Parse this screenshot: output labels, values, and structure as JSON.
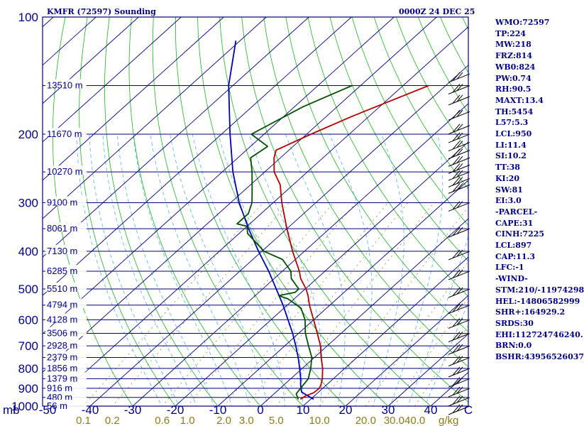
{
  "header": {
    "station": "KMFR (72597) Sounding",
    "time": "0000Z 24 DEC 25"
  },
  "indices": [
    "WMO:72597",
    "TP:224",
    "MW:218",
    "FRZ:814",
    "WB0:824",
    "PW:0.74",
    "RH:90.5",
    "MAXT:13.4",
    "TH:5454",
    "L57:5.3",
    "LCL:950",
    "LI:11.4",
    "SI:10.2",
    "TT:38",
    "KI:20",
    "SW:81",
    "EI:3.0",
    "-PARCEL-",
    "CAPE:31",
    "CINH:7225",
    "LCL:897",
    "CAP:11.3",
    "LFC:-1",
    "-WIND-",
    "STM:210/-11974298",
    "HEL:-14806582999",
    "SHR+:164929.2",
    "SRDS:30",
    "EHI:112724746240.",
    "BRN:0.0",
    "BSHR:43956526037"
  ],
  "colors": {
    "frame": "#000080",
    "temperature": "#b00000",
    "dewpoint": "#005000",
    "parcel": "#0000b0",
    "dry_adiabat": "#20b020",
    "moist_adiabat": "#5aaef0",
    "mixing_ratio": "#8a7a1a",
    "isotherm": "#000080",
    "background": "#ffffff"
  },
  "chart_data": {
    "type": "skew-t",
    "title": "KMFR (72597) Sounding",
    "valid_time": "0000Z 24 DEC 25",
    "pressure_axis_label": "mb",
    "pressure_ticks": [
      100,
      200,
      300,
      400,
      500,
      600,
      700,
      800,
      900,
      1000
    ],
    "pressure_range": [
      1000,
      100
    ],
    "temperature_axis_unit": "C",
    "temperature_ticks": [
      -50,
      -40,
      -30,
      -20,
      -10,
      0,
      10,
      20,
      30,
      40
    ],
    "temperature_range": [
      -50,
      50
    ],
    "mixing_ratio_unit": "g/kg",
    "mixing_ratio_labels": [
      "0.1",
      "0.2",
      "0.6",
      "1.0",
      "2.0",
      "3.0",
      "5.0",
      "10.0",
      "20.0",
      "30.0",
      "40.0"
    ],
    "mixing_ratio_values": [
      0.1,
      0.2,
      0.6,
      1.0,
      2.0,
      3.0,
      5.0,
      10.0,
      20.0,
      30.0,
      40.0
    ],
    "heights": [
      {
        "p": 150,
        "label": "13510 m"
      },
      {
        "p": 200,
        "label": "11670 m"
      },
      {
        "p": 250,
        "label": "10270 m"
      },
      {
        "p": 300,
        "label": "9100 m"
      },
      {
        "p": 350,
        "label": "8061 m"
      },
      {
        "p": 400,
        "label": "7130 m"
      },
      {
        "p": 450,
        "label": "6285 m"
      },
      {
        "p": 500,
        "label": "5510 m"
      },
      {
        "p": 550,
        "label": "4794 m"
      },
      {
        "p": 600,
        "label": "4128 m"
      },
      {
        "p": 650,
        "label": "3506 m"
      },
      {
        "p": 700,
        "label": "2928 m"
      },
      {
        "p": 750,
        "label": "2379 m"
      },
      {
        "p": 800,
        "label": "1856 m"
      },
      {
        "p": 850,
        "label": "1379 m"
      },
      {
        "p": 900,
        "label": "916 m"
      },
      {
        "p": 950,
        "label": "480 m"
      },
      {
        "p": 1000,
        "label": "56 m"
      }
    ],
    "temperature_profile": [
      {
        "p": 960,
        "t": 7.6
      },
      {
        "p": 940,
        "t": 8.0
      },
      {
        "p": 925,
        "t": 9.0
      },
      {
        "p": 900,
        "t": 9.2
      },
      {
        "p": 880,
        "t": 8.6
      },
      {
        "p": 850,
        "t": 7.4
      },
      {
        "p": 800,
        "t": 4.8
      },
      {
        "p": 750,
        "t": 1.6
      },
      {
        "p": 700,
        "t": -1.6
      },
      {
        "p": 650,
        "t": -5.6
      },
      {
        "p": 600,
        "t": -10.0
      },
      {
        "p": 550,
        "t": -14.8
      },
      {
        "p": 520,
        "t": -17.6
      },
      {
        "p": 500,
        "t": -19.8
      },
      {
        "p": 470,
        "t": -23.8
      },
      {
        "p": 450,
        "t": -26.0
      },
      {
        "p": 400,
        "t": -32.8
      },
      {
        "p": 350,
        "t": -40.0
      },
      {
        "p": 300,
        "t": -48.0
      },
      {
        "p": 270,
        "t": -53.0
      },
      {
        "p": 250,
        "t": -57.8
      },
      {
        "p": 230,
        "t": -61.5
      },
      {
        "p": 220,
        "t": -63.0
      },
      {
        "p": 200,
        "t": -59.0
      },
      {
        "p": 180,
        "t": -54.0
      },
      {
        "p": 150,
        "t": -44.0
      }
    ],
    "dewpoint_profile": [
      {
        "p": 960,
        "t": 7.1
      },
      {
        "p": 930,
        "t": 5.2
      },
      {
        "p": 900,
        "t": 4.8
      },
      {
        "p": 850,
        "t": 4.1
      },
      {
        "p": 800,
        "t": 2.0
      },
      {
        "p": 750,
        "t": -0.6
      },
      {
        "p": 700,
        "t": -4.4
      },
      {
        "p": 650,
        "t": -8.4
      },
      {
        "p": 600,
        "t": -12.0
      },
      {
        "p": 560,
        "t": -16.0
      },
      {
        "p": 530,
        "t": -21.5
      },
      {
        "p": 520,
        "t": -24.5
      },
      {
        "p": 510,
        "t": -21.5
      },
      {
        "p": 500,
        "t": -21.5
      },
      {
        "p": 470,
        "t": -26.0
      },
      {
        "p": 450,
        "t": -28.0
      },
      {
        "p": 420,
        "t": -33.0
      },
      {
        "p": 400,
        "t": -39.5
      },
      {
        "p": 360,
        "t": -48.0
      },
      {
        "p": 345,
        "t": -50.0
      },
      {
        "p": 340,
        "t": -53.0
      },
      {
        "p": 320,
        "t": -53.0
      },
      {
        "p": 300,
        "t": -55.0
      },
      {
        "p": 280,
        "t": -58.0
      },
      {
        "p": 250,
        "t": -63.0
      },
      {
        "p": 230,
        "t": -67.0
      },
      {
        "p": 215,
        "t": -66.0
      },
      {
        "p": 200,
        "t": -73.0
      },
      {
        "p": 170,
        "t": -68.0
      },
      {
        "p": 150,
        "t": -62.0
      }
    ],
    "parcel_profile": [
      {
        "p": 960,
        "t": 10.7
      },
      {
        "p": 920,
        "t": 6.0
      },
      {
        "p": 880,
        "t": 3.8
      },
      {
        "p": 850,
        "t": 2.3
      },
      {
        "p": 800,
        "t": -0.6
      },
      {
        "p": 750,
        "t": -3.8
      },
      {
        "p": 700,
        "t": -7.4
      },
      {
        "p": 650,
        "t": -11.4
      },
      {
        "p": 600,
        "t": -16.0
      },
      {
        "p": 550,
        "t": -21.0
      },
      {
        "p": 500,
        "t": -26.8
      },
      {
        "p": 450,
        "t": -33.2
      },
      {
        "p": 400,
        "t": -40.8
      },
      {
        "p": 350,
        "t": -49.0
      },
      {
        "p": 300,
        "t": -58.0
      },
      {
        "p": 250,
        "t": -67.5
      },
      {
        "p": 200,
        "t": -78.0
      },
      {
        "p": 150,
        "t": -91.0
      },
      {
        "p": 115,
        "t": -101.0
      }
    ]
  }
}
